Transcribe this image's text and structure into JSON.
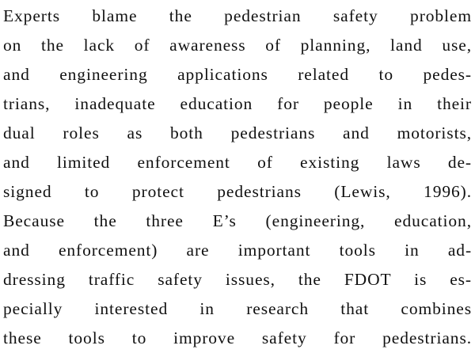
{
  "paragraph": {
    "lines": [
      "Experts blame the pedestrian safety problem",
      "on the lack of awareness of planning, land use,",
      "and engineering applications related to pedes-",
      "trians, inadequate education for people in their",
      "dual roles as both pedestrians and motorists,",
      "and limited enforcement of existing laws de-",
      "signed to protect pedestrians (Lewis, 1996).",
      "Because the three E’s (engineering, education,",
      "and enforcement) are important tools in ad-",
      "dressing traffic safety issues, the FDOT is es-",
      "pecially interested in research that combines",
      "these tools to improve safety for pedestrians."
    ]
  }
}
